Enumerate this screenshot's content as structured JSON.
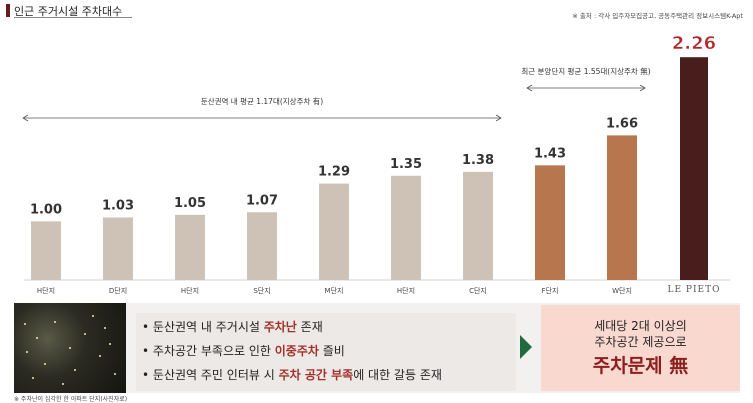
{
  "header": {
    "title": "인근 주거시설 주차대수",
    "source": "※ 출처 : 각사 입주자모집공고, 공동주택관리 정보시스템K-Apt"
  },
  "chart_data": {
    "type": "bar",
    "categories": [
      "H단지",
      "D단지",
      "H단지",
      "S단지",
      "M단지",
      "H단지",
      "C단지",
      "F단지",
      "W단지",
      "LE PIETO"
    ],
    "values": [
      1.0,
      1.03,
      1.05,
      1.07,
      1.29,
      1.35,
      1.38,
      1.43,
      1.66,
      2.26
    ],
    "value_labels": [
      "1.00",
      "1.03",
      "1.05",
      "1.07",
      "1.29",
      "1.35",
      "1.38",
      "1.43",
      "1.66",
      "2.26"
    ],
    "ylim": [
      0.55,
      2.3
    ],
    "colors": [
      "#cdc2b5",
      "#cdc2b5",
      "#cdc2b5",
      "#cdc2b5",
      "#cdc2b5",
      "#cdc2b5",
      "#cdc2b5",
      "#b8764e",
      "#b8764e",
      "#4a1d1d"
    ],
    "highlight_label_color": "#b0272a",
    "annotations": [
      {
        "text": "둔산권역 내 평균 1.17대(지상주차 有)",
        "from": 0,
        "to": 6
      },
      {
        "text": "최근 분양단지 평균 1.55대(지상주차 無)",
        "from": 7,
        "to": 8
      }
    ],
    "grid": false
  },
  "bullets": [
    {
      "pre": "둔산권역 내 주거시설 ",
      "hl": "주차난",
      "post": " 존재"
    },
    {
      "pre": "주차공간 부족으로 인한 ",
      "hl": "이중주차",
      "post": " 즐비"
    },
    {
      "pre": "둔산권역 주민 인터뷰 시 ",
      "hl": "주차 공간 부족",
      "post": "에 대한 갈등 존재"
    }
  ],
  "photo_caption": "※ 주차난이 심각한 한 아파트 단지(사진자료)",
  "callout": {
    "line1": "세대당 2대 이상의",
    "line2": "주차공간 제공으로",
    "line3": "주차문제 無"
  },
  "logo_text": "LE PIETO"
}
